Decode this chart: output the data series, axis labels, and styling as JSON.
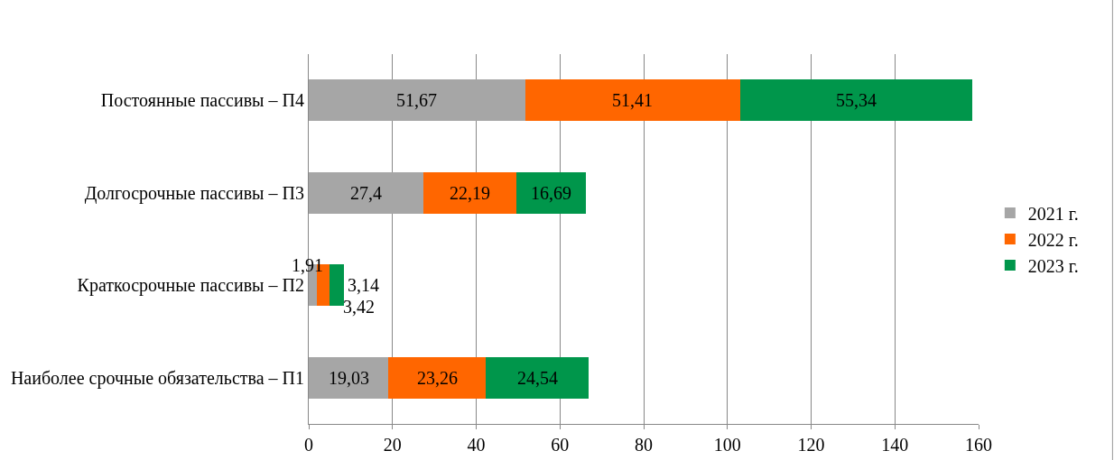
{
  "chart_data": {
    "type": "bar",
    "orientation": "horizontal",
    "stacked": true,
    "categories": [
      "Постоянные пассивы – П4",
      "Долгосрочные пассивы – П3",
      "Краткосрочные пассивы – П2",
      "Наиболее срочные обязательства – П1"
    ],
    "series": [
      {
        "name": "2021 г.",
        "color": "#a6a6a6",
        "values": [
          51.67,
          27.4,
          1.91,
          19.03
        ],
        "value_labels": [
          "51,67",
          "27,4",
          "1,91",
          "19,03"
        ]
      },
      {
        "name": "2022 г.",
        "color": "#ff6600",
        "values": [
          51.41,
          22.19,
          3.14,
          23.26
        ],
        "value_labels": [
          "51,41",
          "22,19",
          "3,14",
          "23,26"
        ]
      },
      {
        "name": "2023 г.",
        "color": "#00964b",
        "values": [
          55.34,
          16.69,
          3.42,
          24.54
        ],
        "value_labels": [
          "55,34",
          "16,69",
          "3,42",
          "24,54"
        ]
      }
    ],
    "xlim": [
      0,
      160
    ],
    "xticks": [
      0,
      20,
      40,
      60,
      80,
      100,
      120,
      140,
      160
    ],
    "grid": "x",
    "legend": "right"
  }
}
